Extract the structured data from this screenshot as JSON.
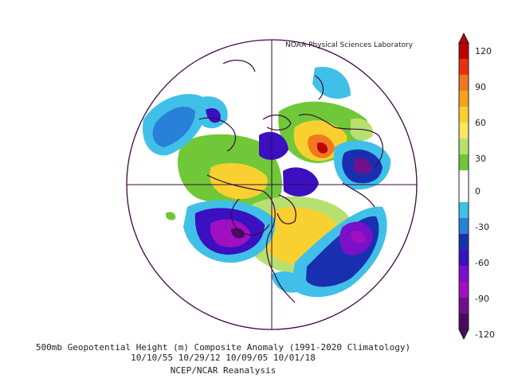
{
  "credit": "NOAA Physical Sciences Laboratory",
  "title_line1": "500mb Geopotential Height (m) Composite Anomaly (1991-2020 Climatology)",
  "title_line2": "10/10/55 10/29/12 10/09/05 10/01/18",
  "title_line3": "NCEP/NCAR Reanalysis",
  "colorbar": {
    "ticks": [
      "120",
      "90",
      "60",
      "30",
      "0",
      "-30",
      "-60",
      "-90",
      "-120"
    ],
    "colors": [
      "#c00000",
      "#e83010",
      "#f07820",
      "#f8a020",
      "#f8d030",
      "#f8e860",
      "#b8e070",
      "#70c838",
      "#ffffff",
      "#ffffff",
      "#40c0e8",
      "#2880d8",
      "#1830b0",
      "#3a10c0",
      "#7a10c8",
      "#a010c0",
      "#70108a",
      "#4a0a60"
    ]
  }
}
